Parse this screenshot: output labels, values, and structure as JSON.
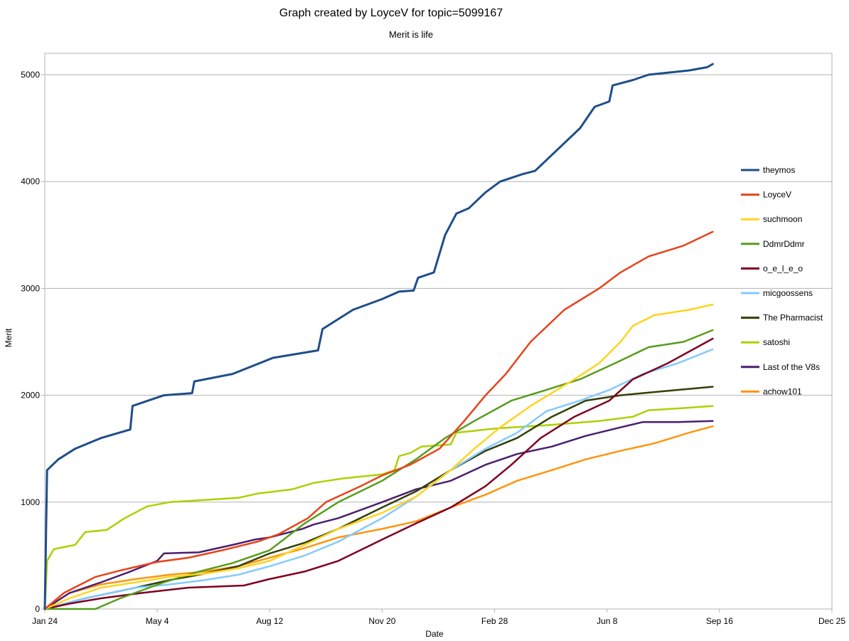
{
  "chart_data": {
    "type": "line",
    "title": "Graph created by LoyceV for topic=5099167",
    "subtitle": "Merit is life",
    "xlabel": "Date",
    "ylabel": "Merit",
    "ylim": [
      0,
      5200
    ],
    "xlim": [
      "2018-01-24",
      "2019-12-25"
    ],
    "yticks": [
      0,
      1000,
      2000,
      3000,
      4000,
      5000
    ],
    "xticks": [
      {
        "date": "2018-01-24",
        "label": "Jan 24"
      },
      {
        "date": "2018-05-04",
        "label": "May 4"
      },
      {
        "date": "2018-08-12",
        "label": "Aug 12"
      },
      {
        "date": "2018-11-20",
        "label": "Nov 20"
      },
      {
        "date": "2019-02-28",
        "label": "Feb 28"
      },
      {
        "date": "2019-06-08",
        "label": "Jun 8"
      },
      {
        "date": "2019-09-16",
        "label": "Sep 16"
      },
      {
        "date": "2019-12-25",
        "label": "Dec 25"
      }
    ],
    "grid": "horizontal",
    "legend_position": "right",
    "series": [
      {
        "name": "theymos",
        "color": "#1f4e89",
        "points": [
          [
            "2018-01-24",
            0
          ],
          [
            "2018-01-26",
            1300
          ],
          [
            "2018-02-05",
            1400
          ],
          [
            "2018-02-20",
            1500
          ],
          [
            "2018-03-15",
            1600
          ],
          [
            "2018-04-10",
            1680
          ],
          [
            "2018-04-12",
            1900
          ],
          [
            "2018-05-10",
            2000
          ],
          [
            "2018-06-04",
            2020
          ],
          [
            "2018-06-06",
            2130
          ],
          [
            "2018-07-10",
            2200
          ],
          [
            "2018-08-15",
            2350
          ],
          [
            "2018-09-24",
            2420
          ],
          [
            "2018-09-28",
            2620
          ],
          [
            "2018-10-25",
            2800
          ],
          [
            "2018-11-20",
            2900
          ],
          [
            "2018-12-05",
            2970
          ],
          [
            "2018-12-18",
            2980
          ],
          [
            "2018-12-22",
            3100
          ],
          [
            "2019-01-05",
            3150
          ],
          [
            "2019-01-15",
            3500
          ],
          [
            "2019-01-25",
            3700
          ],
          [
            "2019-02-05",
            3750
          ],
          [
            "2019-02-20",
            3900
          ],
          [
            "2019-03-05",
            4000
          ],
          [
            "2019-03-25",
            4070
          ],
          [
            "2019-04-05",
            4100
          ],
          [
            "2019-04-20",
            4250
          ],
          [
            "2019-05-15",
            4500
          ],
          [
            "2019-05-28",
            4700
          ],
          [
            "2019-06-10",
            4750
          ],
          [
            "2019-06-13",
            4900
          ],
          [
            "2019-07-01",
            4950
          ],
          [
            "2019-07-15",
            5000
          ],
          [
            "2019-08-20",
            5040
          ],
          [
            "2019-09-05",
            5070
          ],
          [
            "2019-09-10",
            5100
          ]
        ]
      },
      {
        "name": "LoyceV",
        "color": "#e8431b",
        "points": [
          [
            "2018-01-24",
            0
          ],
          [
            "2018-02-10",
            150
          ],
          [
            "2018-03-10",
            300
          ],
          [
            "2018-04-01",
            360
          ],
          [
            "2018-05-04",
            440
          ],
          [
            "2018-06-01",
            480
          ],
          [
            "2018-07-01",
            550
          ],
          [
            "2018-08-01",
            630
          ],
          [
            "2018-08-20",
            700
          ],
          [
            "2018-09-15",
            850
          ],
          [
            "2018-10-01",
            1000
          ],
          [
            "2018-11-01",
            1150
          ],
          [
            "2018-11-20",
            1250
          ],
          [
            "2018-12-15",
            1350
          ],
          [
            "2019-01-10",
            1500
          ],
          [
            "2019-02-01",
            1760
          ],
          [
            "2019-02-20",
            2000
          ],
          [
            "2019-03-10",
            2200
          ],
          [
            "2019-04-01",
            2500
          ],
          [
            "2019-05-01",
            2800
          ],
          [
            "2019-06-01",
            3000
          ],
          [
            "2019-06-20",
            3150
          ],
          [
            "2019-07-15",
            3300
          ],
          [
            "2019-08-15",
            3400
          ],
          [
            "2019-09-10",
            3530
          ]
        ]
      },
      {
        "name": "suchmoon",
        "color": "#ffd320",
        "points": [
          [
            "2018-01-24",
            0
          ],
          [
            "2018-02-15",
            100
          ],
          [
            "2018-03-15",
            200
          ],
          [
            "2018-04-15",
            250
          ],
          [
            "2018-05-15",
            300
          ],
          [
            "2018-06-15",
            330
          ],
          [
            "2018-07-15",
            380
          ],
          [
            "2018-08-12",
            450
          ],
          [
            "2018-09-12",
            600
          ],
          [
            "2018-10-12",
            750
          ],
          [
            "2018-11-20",
            900
          ],
          [
            "2018-12-20",
            1050
          ],
          [
            "2019-01-20",
            1300
          ],
          [
            "2019-02-10",
            1500
          ],
          [
            "2019-03-05",
            1700
          ],
          [
            "2019-04-01",
            1900
          ],
          [
            "2019-05-10",
            2150
          ],
          [
            "2019-06-01",
            2300
          ],
          [
            "2019-06-20",
            2500
          ],
          [
            "2019-07-01",
            2650
          ],
          [
            "2019-07-20",
            2750
          ],
          [
            "2019-08-20",
            2800
          ],
          [
            "2019-09-10",
            2850
          ]
        ]
      },
      {
        "name": "DdmrDdmr",
        "color": "#579d1c",
        "points": [
          [
            "2018-01-24",
            0
          ],
          [
            "2018-03-10",
            0
          ],
          [
            "2018-04-01",
            100
          ],
          [
            "2018-05-10",
            250
          ],
          [
            "2018-06-10",
            350
          ],
          [
            "2018-07-10",
            430
          ],
          [
            "2018-08-12",
            550
          ],
          [
            "2018-09-12",
            800
          ],
          [
            "2018-10-12",
            1000
          ],
          [
            "2018-11-20",
            1200
          ],
          [
            "2018-12-20",
            1400
          ],
          [
            "2019-01-15",
            1600
          ],
          [
            "2019-02-10",
            1760
          ],
          [
            "2019-03-15",
            1950
          ],
          [
            "2019-04-15",
            2050
          ],
          [
            "2019-05-15",
            2150
          ],
          [
            "2019-06-15",
            2300
          ],
          [
            "2019-07-15",
            2450
          ],
          [
            "2019-08-15",
            2500
          ],
          [
            "2019-09-10",
            2610
          ]
        ]
      },
      {
        "name": "o_e_l_e_o",
        "color": "#7e0021",
        "points": [
          [
            "2018-01-24",
            0
          ],
          [
            "2018-02-15",
            50
          ],
          [
            "2018-03-15",
            100
          ],
          [
            "2018-04-20",
            150
          ],
          [
            "2018-06-01",
            200
          ],
          [
            "2018-07-20",
            220
          ],
          [
            "2018-08-12",
            280
          ],
          [
            "2018-09-12",
            350
          ],
          [
            "2018-10-12",
            450
          ],
          [
            "2018-11-20",
            650
          ],
          [
            "2018-12-20",
            800
          ],
          [
            "2019-01-20",
            950
          ],
          [
            "2019-02-20",
            1150
          ],
          [
            "2019-03-15",
            1350
          ],
          [
            "2019-04-10",
            1600
          ],
          [
            "2019-05-10",
            1800
          ],
          [
            "2019-06-10",
            1950
          ],
          [
            "2019-07-01",
            2150
          ],
          [
            "2019-08-01",
            2300
          ],
          [
            "2019-09-10",
            2530
          ]
        ]
      },
      {
        "name": "micgoossens",
        "color": "#83caff",
        "points": [
          [
            "2018-01-24",
            0
          ],
          [
            "2018-03-01",
            100
          ],
          [
            "2018-04-15",
            200
          ],
          [
            "2018-05-15",
            230
          ],
          [
            "2018-06-15",
            270
          ],
          [
            "2018-07-15",
            320
          ],
          [
            "2018-08-12",
            400
          ],
          [
            "2018-09-12",
            500
          ],
          [
            "2018-10-12",
            630
          ],
          [
            "2018-11-20",
            850
          ],
          [
            "2018-12-20",
            1050
          ],
          [
            "2019-01-20",
            1300
          ],
          [
            "2019-02-20",
            1500
          ],
          [
            "2019-03-20",
            1650
          ],
          [
            "2019-04-15",
            1850
          ],
          [
            "2019-05-15",
            1950
          ],
          [
            "2019-06-10",
            2050
          ],
          [
            "2019-07-10",
            2200
          ],
          [
            "2019-08-10",
            2300
          ],
          [
            "2019-09-10",
            2430
          ]
        ]
      },
      {
        "name": "The Pharmacist",
        "color": "#314004",
        "points": [
          [
            "2018-01-24",
            0
          ],
          [
            "2018-03-01",
            100
          ],
          [
            "2018-04-15",
            200
          ],
          [
            "2018-05-15",
            270
          ],
          [
            "2018-06-15",
            330
          ],
          [
            "2018-07-15",
            400
          ],
          [
            "2018-08-12",
            520
          ],
          [
            "2018-09-12",
            620
          ],
          [
            "2018-10-12",
            750
          ],
          [
            "2018-11-20",
            950
          ],
          [
            "2018-12-20",
            1100
          ],
          [
            "2019-01-20",
            1300
          ],
          [
            "2019-02-20",
            1480
          ],
          [
            "2019-03-20",
            1600
          ],
          [
            "2019-04-20",
            1800
          ],
          [
            "2019-05-20",
            1950
          ],
          [
            "2019-06-20",
            2000
          ],
          [
            "2019-07-20",
            2030
          ],
          [
            "2019-08-20",
            2060
          ],
          [
            "2019-09-10",
            2080
          ]
        ]
      },
      {
        "name": "satoshi",
        "color": "#aecf00",
        "points": [
          [
            "2018-01-24",
            0
          ],
          [
            "2018-01-26",
            450
          ],
          [
            "2018-02-01",
            560
          ],
          [
            "2018-02-20",
            600
          ],
          [
            "2018-03-01",
            720
          ],
          [
            "2018-03-20",
            740
          ],
          [
            "2018-04-05",
            850
          ],
          [
            "2018-04-25",
            960
          ],
          [
            "2018-05-15",
            1000
          ],
          [
            "2018-06-15",
            1020
          ],
          [
            "2018-07-15",
            1040
          ],
          [
            "2018-08-01",
            1080
          ],
          [
            "2018-09-01",
            1120
          ],
          [
            "2018-09-20",
            1180
          ],
          [
            "2018-10-15",
            1220
          ],
          [
            "2018-11-20",
            1260
          ],
          [
            "2018-12-01",
            1300
          ],
          [
            "2018-12-05",
            1430
          ],
          [
            "2018-12-15",
            1460
          ],
          [
            "2018-12-25",
            1520
          ],
          [
            "2019-01-20",
            1540
          ],
          [
            "2019-01-25",
            1650
          ],
          [
            "2019-03-01",
            1690
          ],
          [
            "2019-04-15",
            1720
          ],
          [
            "2019-06-01",
            1760
          ],
          [
            "2019-07-01",
            1800
          ],
          [
            "2019-07-15",
            1860
          ],
          [
            "2019-08-15",
            1880
          ],
          [
            "2019-09-10",
            1900
          ]
        ]
      },
      {
        "name": "Last of the V8s",
        "color": "#4b1f6f",
        "points": [
          [
            "2018-01-24",
            0
          ],
          [
            "2018-02-15",
            150
          ],
          [
            "2018-03-15",
            250
          ],
          [
            "2018-04-10",
            350
          ],
          [
            "2018-05-04",
            450
          ],
          [
            "2018-05-10",
            520
          ],
          [
            "2018-06-10",
            530
          ],
          [
            "2018-07-10",
            600
          ],
          [
            "2018-07-30",
            650
          ],
          [
            "2018-08-12",
            670
          ],
          [
            "2018-09-10",
            750
          ],
          [
            "2018-09-20",
            790
          ],
          [
            "2018-10-12",
            850
          ],
          [
            "2018-11-20",
            1000
          ],
          [
            "2018-12-20",
            1120
          ],
          [
            "2019-01-20",
            1200
          ],
          [
            "2019-02-20",
            1350
          ],
          [
            "2019-03-20",
            1450
          ],
          [
            "2019-04-20",
            1520
          ],
          [
            "2019-05-20",
            1620
          ],
          [
            "2019-06-20",
            1700
          ],
          [
            "2019-07-10",
            1750
          ],
          [
            "2019-08-10",
            1750
          ],
          [
            "2019-09-10",
            1760
          ]
        ]
      },
      {
        "name": "achow101",
        "color": "#ff950e",
        "points": [
          [
            "2018-01-24",
            0
          ],
          [
            "2018-02-15",
            150
          ],
          [
            "2018-03-15",
            230
          ],
          [
            "2018-04-15",
            280
          ],
          [
            "2018-05-15",
            320
          ],
          [
            "2018-06-15",
            350
          ],
          [
            "2018-07-15",
            400
          ],
          [
            "2018-08-12",
            480
          ],
          [
            "2018-09-12",
            570
          ],
          [
            "2018-10-12",
            670
          ],
          [
            "2018-11-20",
            750
          ],
          [
            "2018-12-20",
            820
          ],
          [
            "2019-01-20",
            950
          ],
          [
            "2019-02-20",
            1070
          ],
          [
            "2019-03-20",
            1200
          ],
          [
            "2019-04-20",
            1300
          ],
          [
            "2019-05-20",
            1400
          ],
          [
            "2019-06-20",
            1480
          ],
          [
            "2019-07-20",
            1550
          ],
          [
            "2019-08-20",
            1650
          ],
          [
            "2019-09-10",
            1710
          ]
        ]
      }
    ]
  }
}
